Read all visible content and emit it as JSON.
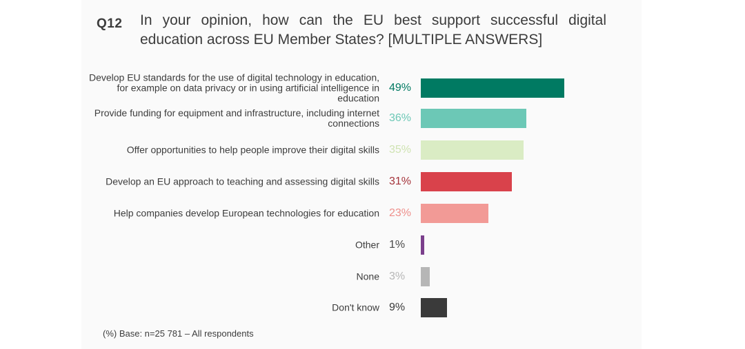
{
  "question": {
    "id": "Q12",
    "text": "In your opinion, how can the EU best support successful digital education across EU Member States? [MULTIPLE ANSWERS]"
  },
  "chart_data": {
    "type": "bar",
    "orientation": "horizontal",
    "categories": [
      "Develop EU standards for the use of digital technology in education, for example on data privacy or in using artificial intelligence in education",
      "Provide funding for equipment and infrastructure, including internet connections",
      "Offer opportunities to help people improve their digital skills",
      "Develop an EU approach to teaching and assessing digital skills",
      "Help companies develop European technologies for education",
      "Other",
      "None",
      "Don't know"
    ],
    "values": [
      49,
      36,
      35,
      31,
      23,
      1,
      3,
      9
    ],
    "value_labels": [
      "49%",
      "36%",
      "35%",
      "31%",
      "23%",
      "1%",
      "3%",
      "9%"
    ],
    "colors": [
      "#007a62",
      "#6cc8b6",
      "#daecc4",
      "#d9424b",
      "#f29a96",
      "#7b3f8c",
      "#b6b6b6",
      "#3a3a3a"
    ],
    "label_colors": [
      "#007a62",
      "#6cc8b6",
      "#cfe3b2",
      "#a43239",
      "#ee8f8b",
      "#4a4a4a",
      "#b6b6b6",
      "#3a3a3a"
    ],
    "footnote": "(%) Base: n=25 781 – All respondents"
  }
}
